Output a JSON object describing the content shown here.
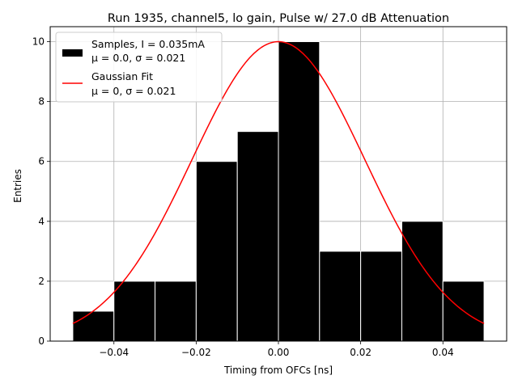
{
  "chart_data": {
    "type": "bar",
    "title": "Run 1935, channel5, lo gain, Pulse w/ 27.0 dB Attenuation",
    "xlabel": "Timing from OFCs [ns]",
    "ylabel": "Entries",
    "xlim": [
      -0.0555,
      0.0555
    ],
    "ylim": [
      0,
      10.5
    ],
    "grid": true,
    "legend_position": "upper-left",
    "x_ticks": [
      -0.04,
      -0.02,
      0.0,
      0.02,
      0.04
    ],
    "x_tick_labels": [
      "−0.04",
      "−0.02",
      "0.00",
      "0.02",
      "0.04"
    ],
    "y_ticks": [
      0,
      2,
      4,
      6,
      8,
      10
    ],
    "y_tick_labels": [
      "0",
      "2",
      "4",
      "6",
      "8",
      "10"
    ],
    "histogram": {
      "name": "Samples",
      "label_line1": "Samples, I = 0.035mA",
      "label_line2": "μ = 0.0, σ = 0.021",
      "color": "#000000",
      "edgecolor": "#ffffff",
      "bin_edges": [
        -0.05,
        -0.04,
        -0.03,
        -0.02,
        -0.01,
        0.0,
        0.01,
        0.02,
        0.03,
        0.04,
        0.05
      ],
      "counts": [
        1,
        2,
        2,
        6,
        7,
        10,
        3,
        3,
        4,
        2
      ]
    },
    "fit": {
      "name": "Gaussian Fit",
      "label_line1": "Gaussian Fit",
      "label_line2": "μ = 0, σ = 0.021",
      "color": "#ff0000",
      "amplitude": 10,
      "mu": 0,
      "sigma": 0.021,
      "x_range": [
        -0.05,
        0.05
      ]
    }
  }
}
